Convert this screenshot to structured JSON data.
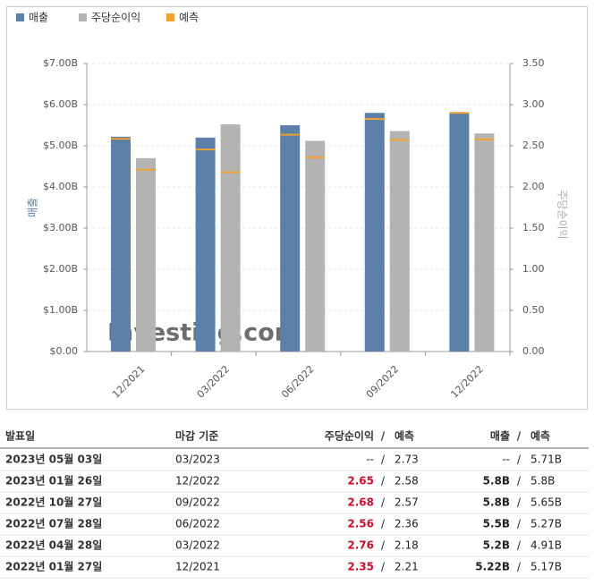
{
  "chart_data": {
    "type": "bar",
    "categories": [
      "12/2021",
      "03/2022",
      "06/2022",
      "09/2022",
      "12/2022"
    ],
    "series": [
      {
        "name": "매출",
        "color": "#5b80aa",
        "values": [
          5.22,
          5.2,
          5.5,
          5.8,
          5.8
        ],
        "forecast_values": [
          5.17,
          4.91,
          5.27,
          5.65,
          5.8
        ]
      },
      {
        "name": "주당순이익",
        "color": "#b3b3b3",
        "axis": "y2",
        "values": [
          2.35,
          2.76,
          2.56,
          2.68,
          2.65
        ],
        "forecast_values": [
          2.21,
          2.18,
          2.36,
          2.57,
          2.58
        ]
      }
    ],
    "forecast": {
      "name": "예측",
      "color": "#f0a030"
    },
    "ylabel": "매출",
    "y2label": "주당순이익",
    "ylim": [
      0,
      7
    ],
    "yticks": [
      {
        "value": 0,
        "label": "$0.00"
      },
      {
        "value": 1,
        "label": "$1.00B"
      },
      {
        "value": 2,
        "label": "$2.00B"
      },
      {
        "value": 3,
        "label": "$3.00B"
      },
      {
        "value": 4,
        "label": "$4.00B"
      },
      {
        "value": 5,
        "label": "$5.00B"
      },
      {
        "value": 6,
        "label": "$6.00B"
      },
      {
        "value": 7,
        "label": "$7.00B"
      }
    ],
    "y2lim": [
      0,
      3.5
    ],
    "y2ticks": [
      {
        "value": 0,
        "label": "0.00"
      },
      {
        "value": 0.5,
        "label": "0.50"
      },
      {
        "value": 1,
        "label": "1.00"
      },
      {
        "value": 1.5,
        "label": "1.50"
      },
      {
        "value": 2,
        "label": "2.00"
      },
      {
        "value": 2.5,
        "label": "2.50"
      },
      {
        "value": 3,
        "label": "3.00"
      },
      {
        "value": 3.5,
        "label": "3.50"
      }
    ],
    "watermark": "Investing.com"
  },
  "table": {
    "headers": [
      "발표일",
      "마감 기준",
      "주당순이익",
      "/",
      "예측",
      "매출",
      "/",
      "예측"
    ],
    "rows": [
      [
        "2023년 05월 03일",
        "03/2023",
        "--",
        "/",
        "2.73",
        "--",
        "/",
        "5.71B"
      ],
      [
        "2023년 01월 26일",
        "12/2022",
        "2.65",
        "/",
        "2.58",
        "5.8B",
        "/",
        "5.8B"
      ],
      [
        "2022년 10월 27일",
        "09/2022",
        "2.68",
        "/",
        "2.57",
        "5.8B",
        "/",
        "5.65B"
      ],
      [
        "2022년 07월 28일",
        "06/2022",
        "2.56",
        "/",
        "2.36",
        "5.5B",
        "/",
        "5.27B"
      ],
      [
        "2022년 04월 28일",
        "03/2022",
        "2.76",
        "/",
        "2.18",
        "5.2B",
        "/",
        "4.91B"
      ],
      [
        "2022년 01월 27일",
        "12/2021",
        "2.35",
        "/",
        "2.21",
        "5.22B",
        "/",
        "5.17B"
      ]
    ]
  }
}
